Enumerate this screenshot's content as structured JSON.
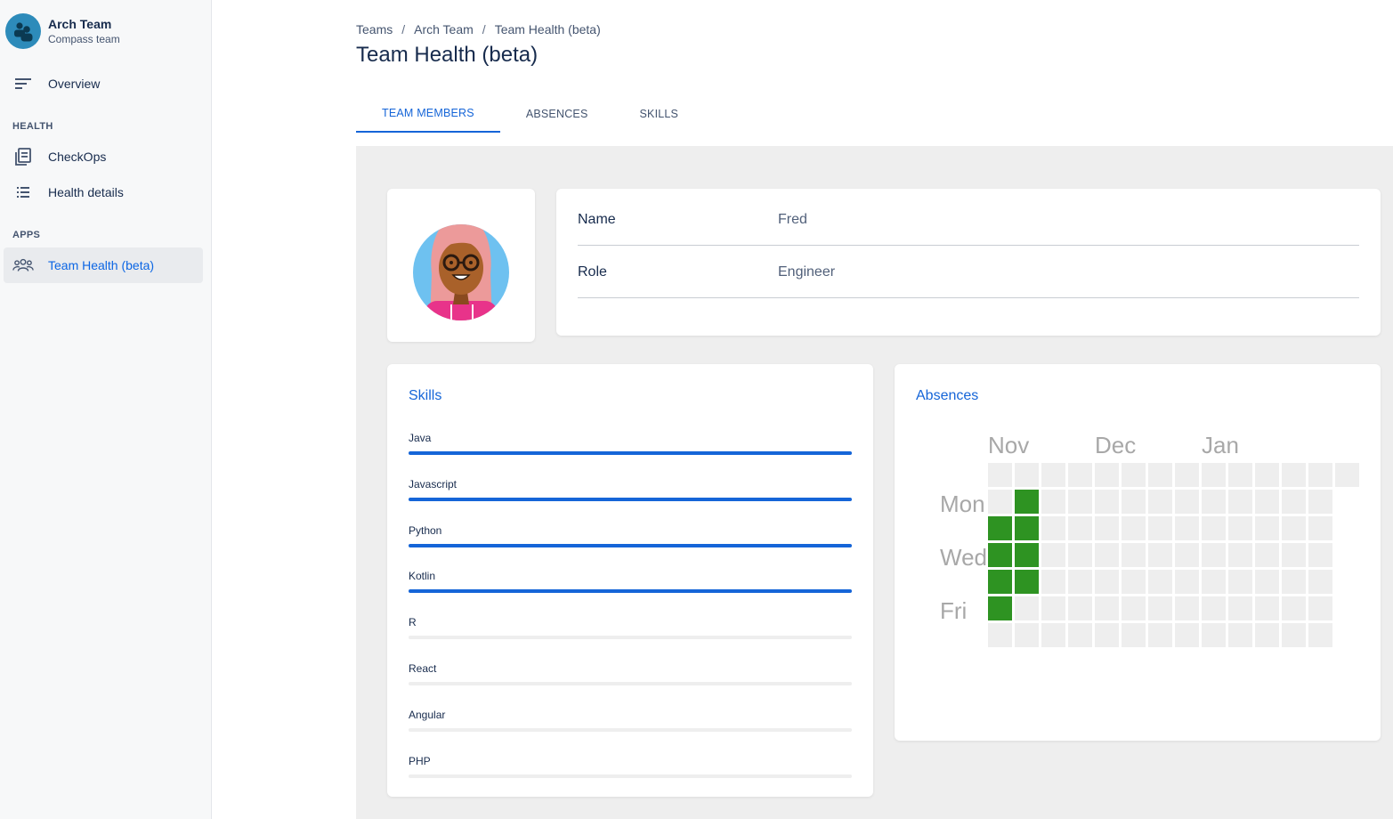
{
  "sidebar": {
    "team_name": "Arch Team",
    "team_subtitle": "Compass team",
    "overview_label": "Overview",
    "health_section": "HEALTH",
    "checkops_label": "CheckOps",
    "health_details_label": "Health details",
    "apps_section": "APPS",
    "team_health_label": "Team Health (beta)"
  },
  "breadcrumb": [
    "Teams",
    "Arch Team",
    "Team Health (beta)"
  ],
  "page_title": "Team Health (beta)",
  "tabs": [
    "TEAM MEMBERS",
    "ABSENCES",
    "SKILLS"
  ],
  "active_tab": "TEAM MEMBERS",
  "member": {
    "name_label": "Name",
    "name_value": "Fred",
    "role_label": "Role",
    "role_value": "Engineer"
  },
  "skills": {
    "title": "Skills",
    "items": [
      {
        "name": "Java",
        "level": 1.0
      },
      {
        "name": "Javascript",
        "level": 1.0
      },
      {
        "name": "Python",
        "level": 1.0
      },
      {
        "name": "Kotlin",
        "level": 1.0
      },
      {
        "name": "R",
        "level": 0.0
      },
      {
        "name": "React",
        "level": 0.0
      },
      {
        "name": "Angular",
        "level": 0.0
      },
      {
        "name": "PHP",
        "level": 0.0
      }
    ]
  },
  "absences": {
    "title": "Absences",
    "months": [
      "Nov",
      "Dec",
      "Jan"
    ],
    "day_labels": [
      "Mon",
      "Wed",
      "Fri"
    ],
    "absent_color": "#2e9322",
    "empty_color": "#eeeeee",
    "absent_cells": [
      {
        "week": 1,
        "day": 1
      },
      {
        "week": 0,
        "day": 2
      },
      {
        "week": 1,
        "day": 2
      },
      {
        "week": 0,
        "day": 3
      },
      {
        "week": 1,
        "day": 3
      },
      {
        "week": 0,
        "day": 4
      },
      {
        "week": 1,
        "day": 4
      },
      {
        "week": 0,
        "day": 5
      }
    ]
  },
  "colors": {
    "accent": "#1565d8",
    "sidebar_bg": "#f7f8f9",
    "content_bg": "#eeeeee"
  }
}
